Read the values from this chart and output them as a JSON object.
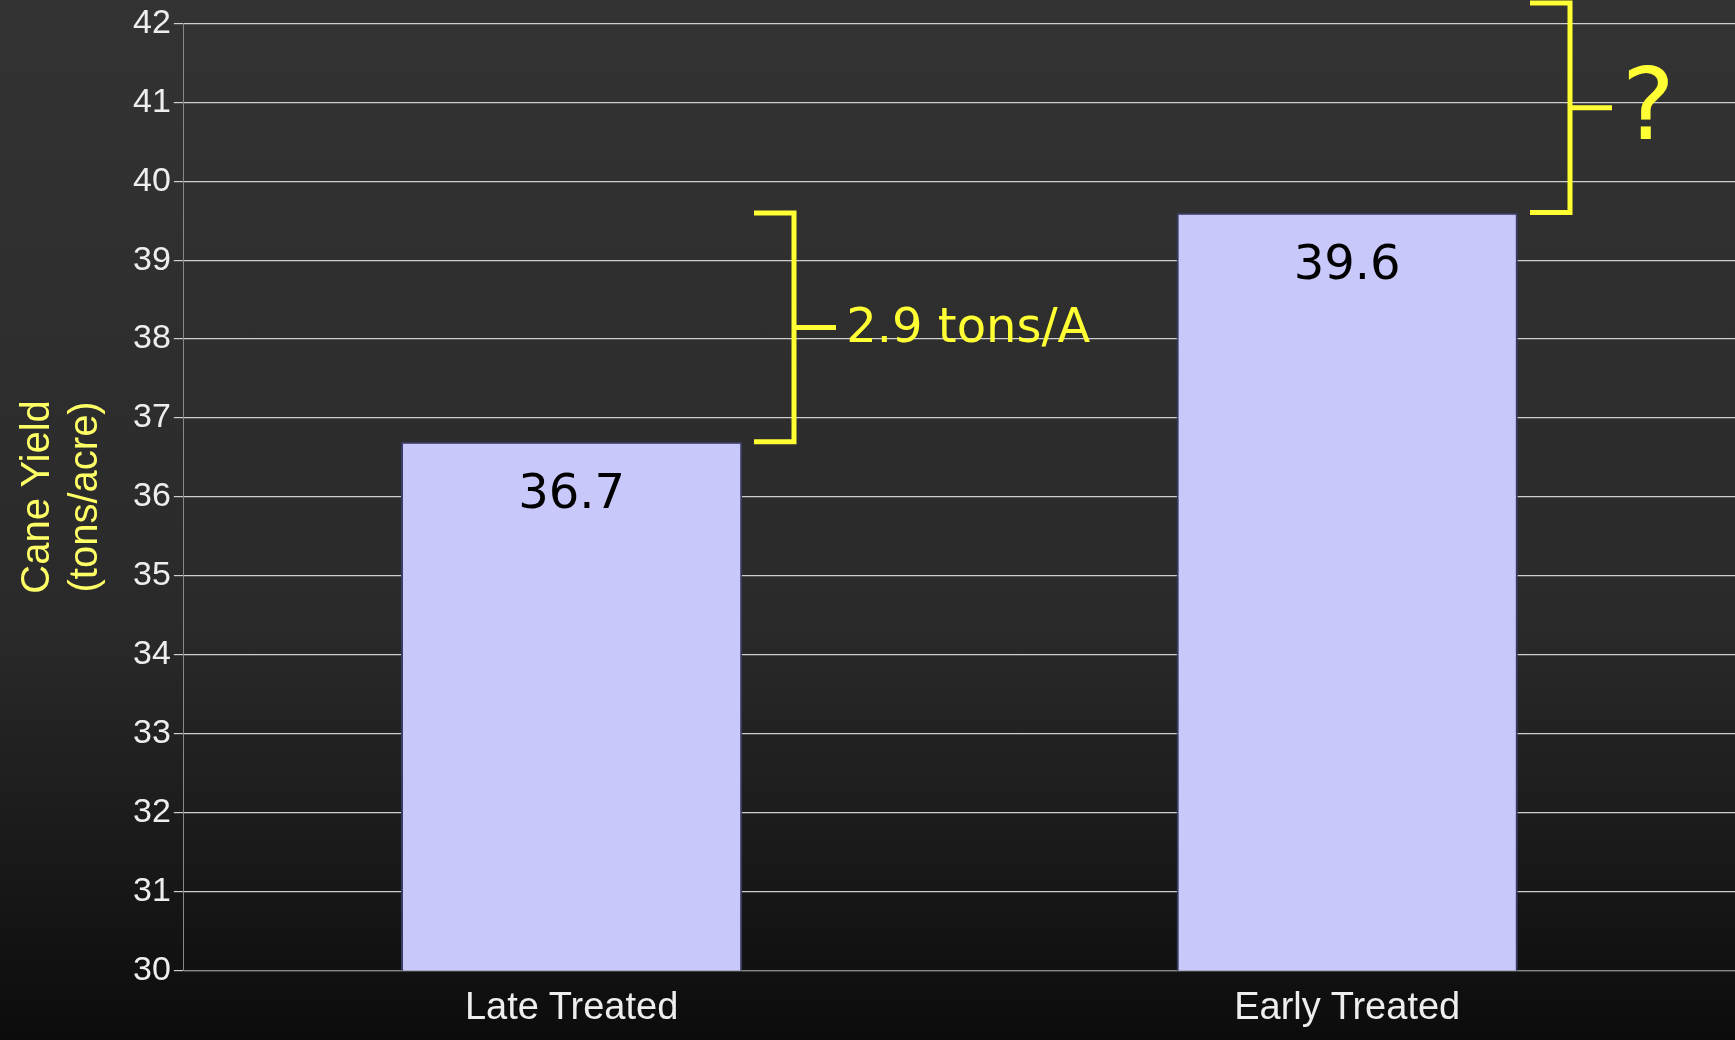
{
  "chart_data": {
    "type": "bar",
    "ylabel": "Cane Yield\n(tons/acre)",
    "categories": [
      "Late Treated",
      "Early Treated"
    ],
    "values": [
      36.7,
      39.6
    ],
    "color": "#c8c8fa",
    "ylim": [
      30,
      42
    ],
    "yticks": [
      30,
      31,
      32,
      33,
      34,
      35,
      36,
      37,
      38,
      39,
      40,
      41,
      42
    ],
    "grid": "y",
    "data_labels": true,
    "legend": false,
    "annotations": [
      "2.9 tons/A",
      "?"
    ]
  }
}
